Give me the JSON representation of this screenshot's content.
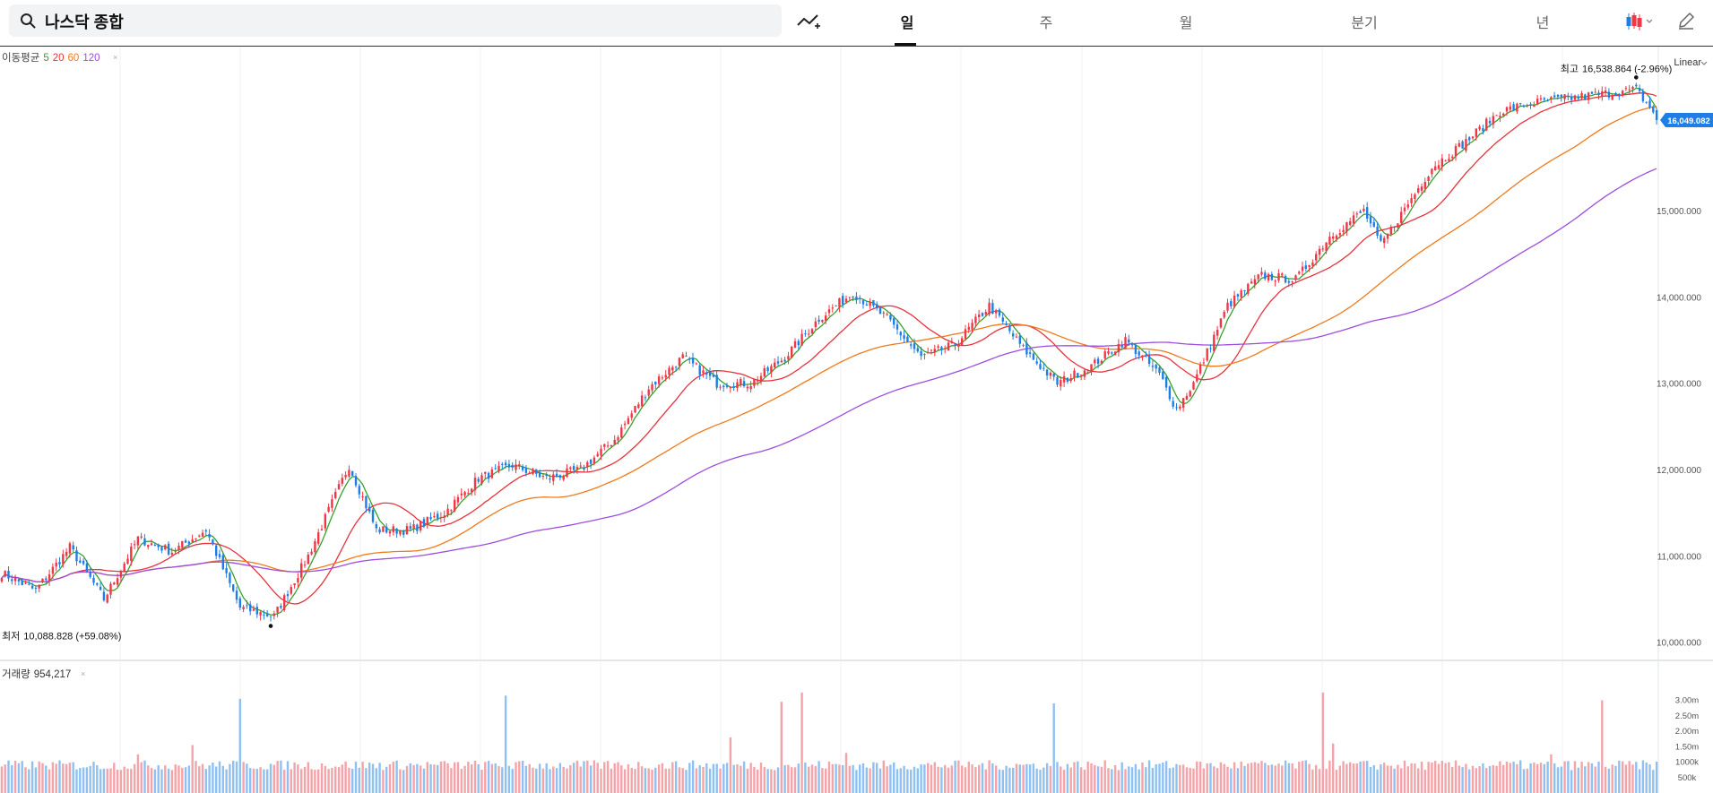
{
  "search": {
    "value": "나스닥 종합",
    "icon": "search-icon"
  },
  "toolbar": {
    "indicator_icon": "add-indicator-icon",
    "periods": [
      {
        "label": "일",
        "active": true
      },
      {
        "label": "주",
        "active": false
      },
      {
        "label": "월",
        "active": false
      },
      {
        "label": "분기",
        "active": false
      },
      {
        "label": "년",
        "active": false
      }
    ],
    "chart_type_icon": "candlestick-icon",
    "draw_icon": "pencil-icon"
  },
  "colors": {
    "up": "#f23645",
    "down": "#1e7ee6",
    "ma5": "#36a12f",
    "ma20": "#e8323c",
    "ma60": "#f07a1c",
    "ma120": "#9d4de0",
    "vol_up": "#f4a3a8",
    "vol_down": "#8ec0f2",
    "current_badge": "#1e7ee6"
  },
  "chart_data": [
    {
      "type": "candlestick",
      "scale_label": "Linear",
      "ylim": [
        9800000,
        16900000
      ],
      "y_ticks": [
        {
          "value": 10000000,
          "label": "10,000.000"
        },
        {
          "value": 11000000,
          "label": "11,000.000"
        },
        {
          "value": 12000000,
          "label": "12,000.000"
        },
        {
          "value": 13000000,
          "label": "13,000.000"
        },
        {
          "value": 14000000,
          "label": "14,000.000"
        },
        {
          "value": 15000000,
          "label": "15,000.000"
        }
      ],
      "ma_legend": {
        "label": "이동평균",
        "periods": [
          "5",
          "20",
          "60",
          "120"
        ]
      },
      "high": {
        "label": "최고",
        "value": "16,538.864",
        "change": "(-2.96%)"
      },
      "low": {
        "label": "최저",
        "value": "10,088.828",
        "change": "(+59.08%)"
      },
      "current": {
        "value": 16049082,
        "label": "16,049.082"
      },
      "anchors": [
        [
          0,
          10800000
        ],
        [
          10,
          10600000
        ],
        [
          20,
          11100000
        ],
        [
          30,
          10500000
        ],
        [
          40,
          11200000
        ],
        [
          50,
          11050000
        ],
        [
          60,
          11300000
        ],
        [
          70,
          10400000
        ],
        [
          80,
          10300000
        ],
        [
          90,
          11000000
        ],
        [
          102,
          12050000
        ],
        [
          110,
          11300000
        ],
        [
          120,
          11300000
        ],
        [
          130,
          11500000
        ],
        [
          140,
          11900000
        ],
        [
          150,
          12050000
        ],
        [
          160,
          11900000
        ],
        [
          170,
          12000000
        ],
        [
          180,
          12350000
        ],
        [
          190,
          12950000
        ],
        [
          200,
          13300000
        ],
        [
          210,
          13000000
        ],
        [
          220,
          13000000
        ],
        [
          230,
          13300000
        ],
        [
          240,
          13750000
        ],
        [
          250,
          14050000
        ],
        [
          260,
          13750000
        ],
        [
          270,
          13300000
        ],
        [
          280,
          13450000
        ],
        [
          290,
          13900000
        ],
        [
          300,
          13400000
        ],
        [
          310,
          13000000
        ],
        [
          320,
          13200000
        ],
        [
          330,
          13500000
        ],
        [
          340,
          13100000
        ],
        [
          345,
          12700000
        ],
        [
          350,
          13000000
        ],
        [
          360,
          13900000
        ],
        [
          370,
          14250000
        ],
        [
          380,
          14200000
        ],
        [
          390,
          14700000
        ],
        [
          400,
          15000000
        ],
        [
          405,
          14600000
        ],
        [
          410,
          14900000
        ],
        [
          420,
          15500000
        ],
        [
          430,
          15800000
        ],
        [
          440,
          16150000
        ],
        [
          450,
          16250000
        ],
        [
          460,
          16300000
        ],
        [
          470,
          16350000
        ],
        [
          480,
          16400000
        ],
        [
          486,
          16100000
        ]
      ],
      "volume": {
        "label": "거래량",
        "value": "954,217",
        "y_ticks": [
          {
            "value": 500000,
            "label": "500k"
          },
          {
            "value": 1000000,
            "label": "1000k"
          },
          {
            "value": 1500000,
            "label": "1.50m"
          },
          {
            "value": 2000000,
            "label": "2.00m"
          },
          {
            "value": 2500000,
            "label": "2.50m"
          },
          {
            "value": 3000000,
            "label": "3.00m"
          }
        ],
        "ylim": [
          0,
          3450000
        ],
        "base": 900000,
        "spikes": [
          [
            40,
            1250000
          ],
          [
            56,
            1550000
          ],
          [
            70,
            3050000
          ],
          [
            148,
            3150000
          ],
          [
            214,
            1800000
          ],
          [
            229,
            2950000
          ],
          [
            235,
            3250000
          ],
          [
            248,
            1300000
          ],
          [
            309,
            2900000
          ],
          [
            388,
            3250000
          ],
          [
            391,
            1600000
          ],
          [
            455,
            1250000
          ],
          [
            470,
            3000000
          ]
        ]
      }
    }
  ]
}
